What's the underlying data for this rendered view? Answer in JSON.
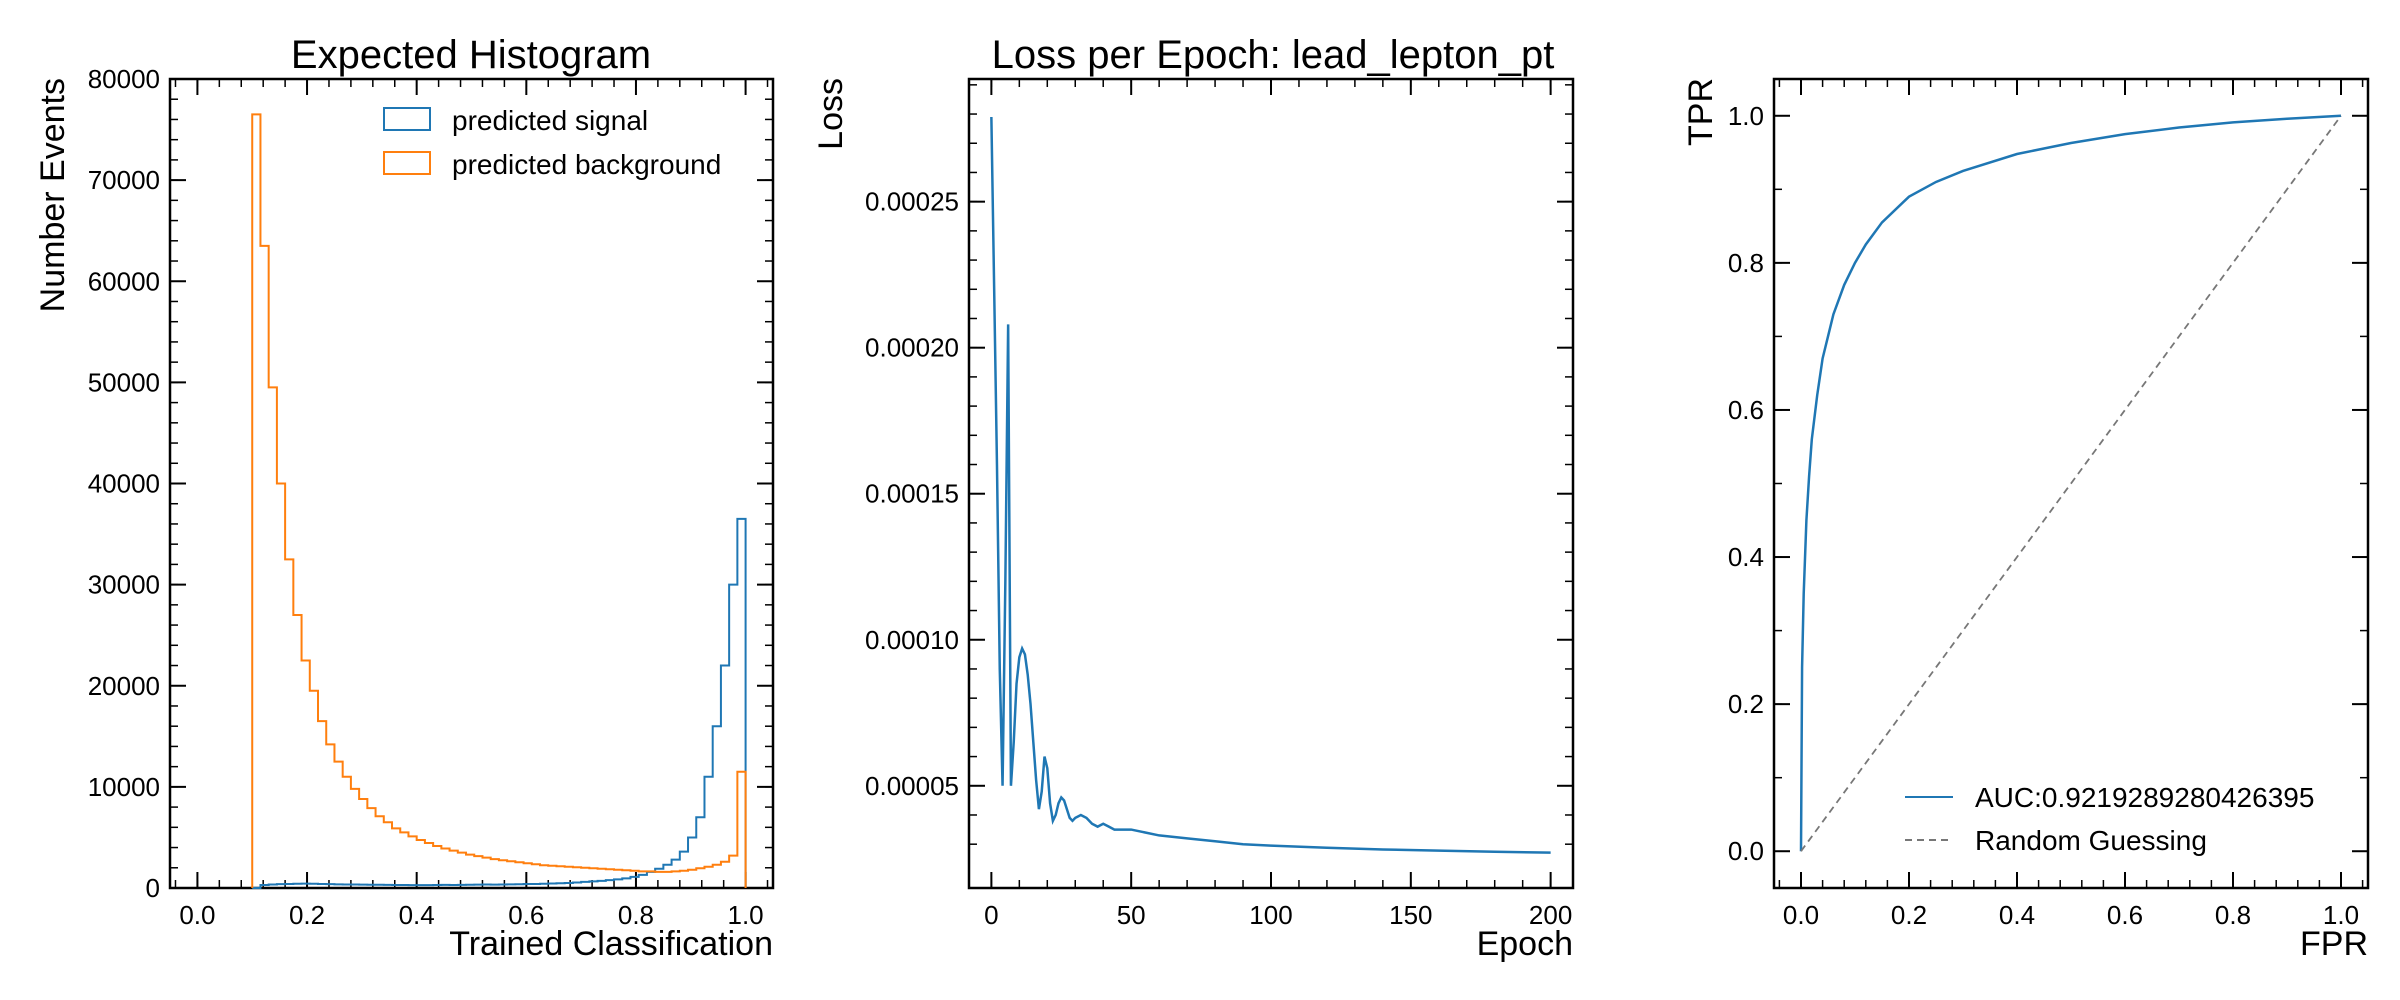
{
  "chart_data": [
    {
      "type": "histogram",
      "title": "Expected Histogram",
      "xlabel": "Trained Classification",
      "ylabel": "Number Events",
      "xlim": [
        -0.05,
        1.05
      ],
      "ylim": [
        0,
        80000
      ],
      "xticks": [
        "0.0",
        "0.2",
        "0.4",
        "0.6",
        "0.8",
        "1.0"
      ],
      "xtick_values": [
        0,
        0.2,
        0.4,
        0.6,
        0.8,
        1.0
      ],
      "yticks": [
        "0",
        "10000",
        "20000",
        "30000",
        "40000",
        "50000",
        "60000",
        "70000",
        "80000"
      ],
      "ytick_values": [
        0,
        10000,
        20000,
        30000,
        40000,
        50000,
        60000,
        70000,
        80000
      ],
      "legend_loc": "top-right",
      "bin_start": 0.1,
      "bin_end": 1.0,
      "series": [
        {
          "name": "predicted signal",
          "color": "#1f77b4",
          "values": [
            0,
            300,
            350,
            380,
            400,
            420,
            430,
            420,
            400,
            380,
            360,
            350,
            340,
            330,
            320,
            320,
            310,
            300,
            300,
            290,
            290,
            290,
            300,
            310,
            300,
            310,
            320,
            330,
            340,
            330,
            350,
            360,
            370,
            390,
            400,
            420,
            450,
            470,
            500,
            550,
            600,
            650,
            700,
            780,
            850,
            950,
            1100,
            1300,
            1600,
            1900,
            2300,
            2800,
            3600,
            5000,
            7000,
            11000,
            16000,
            22000,
            30000,
            36500
          ]
        },
        {
          "name": "predicted background",
          "color": "#ff7f0e",
          "values": [
            76500,
            63500,
            49500,
            40000,
            32500,
            27000,
            22500,
            19500,
            16500,
            14200,
            12500,
            11000,
            9800,
            8800,
            7900,
            7100,
            6500,
            5900,
            5500,
            5100,
            4750,
            4450,
            4150,
            3900,
            3700,
            3500,
            3300,
            3150,
            3000,
            2850,
            2750,
            2650,
            2550,
            2450,
            2350,
            2250,
            2200,
            2150,
            2100,
            2050,
            2000,
            1950,
            1900,
            1850,
            1800,
            1750,
            1700,
            1650,
            1650,
            1600,
            1600,
            1650,
            1700,
            1800,
            1950,
            2100,
            2300,
            2600,
            3200,
            11500
          ]
        }
      ]
    },
    {
      "type": "line",
      "title": "Loss per Epoch: lead_lepton_pt",
      "xlabel": "Epoch",
      "ylabel": "Loss",
      "xlim": [
        -8,
        208
      ],
      "ylim": [
        1.5e-05,
        0.000292
      ],
      "xticks": [
        "0",
        "50",
        "100",
        "150",
        "200"
      ],
      "xtick_values": [
        0,
        50,
        100,
        150,
        200
      ],
      "yticks": [
        "0.00005",
        "0.00010",
        "0.00015",
        "0.00020",
        "0.00025"
      ],
      "ytick_values": [
        5e-05,
        0.0001,
        0.00015,
        0.0002,
        0.00025
      ],
      "series": [
        {
          "name": "",
          "color": "#1f77b4",
          "x": [
            0,
            1,
            2,
            3,
            4,
            5,
            6,
            7,
            8,
            9,
            10,
            11,
            12,
            13,
            14,
            15,
            16,
            17,
            18,
            19,
            20,
            21,
            22,
            23,
            24,
            25,
            26,
            27,
            28,
            29,
            30,
            32,
            34,
            36,
            38,
            40,
            42,
            44,
            46,
            48,
            50,
            55,
            60,
            70,
            80,
            90,
            100,
            120,
            140,
            160,
            180,
            200
          ],
          "y": [
            0.000279,
            0.00022,
            0.00016,
            9e-05,
            5e-05,
            0.00012,
            0.000208,
            5e-05,
            6.5e-05,
            8.5e-05,
            9.4e-05,
            9.7e-05,
            9.5e-05,
            8.8e-05,
            7.8e-05,
            6.5e-05,
            5.2e-05,
            4.2e-05,
            4.8e-05,
            6e-05,
            5.6e-05,
            4.4e-05,
            3.8e-05,
            4e-05,
            4.4e-05,
            4.6e-05,
            4.5e-05,
            4.2e-05,
            3.9e-05,
            3.8e-05,
            3.9e-05,
            4e-05,
            3.9e-05,
            3.7e-05,
            3.6e-05,
            3.7e-05,
            3.6e-05,
            3.5e-05,
            3.5e-05,
            3.5e-05,
            3.5e-05,
            3.4e-05,
            3.3e-05,
            3.2e-05,
            3.1e-05,
            3e-05,
            2.95e-05,
            2.88e-05,
            2.82e-05,
            2.78e-05,
            2.74e-05,
            2.71e-05
          ]
        }
      ]
    },
    {
      "type": "line",
      "title": "",
      "xlabel": "FPR",
      "ylabel": "TPR",
      "xlim": [
        -0.05,
        1.05
      ],
      "ylim": [
        -0.05,
        1.05
      ],
      "xticks": [
        "0.0",
        "0.2",
        "0.4",
        "0.6",
        "0.8",
        "1.0"
      ],
      "xtick_values": [
        0,
        0.2,
        0.4,
        0.6,
        0.8,
        1.0
      ],
      "yticks": [
        "0.0",
        "0.2",
        "0.4",
        "0.6",
        "0.8",
        "1.0"
      ],
      "ytick_values": [
        0,
        0.2,
        0.4,
        0.6,
        0.8,
        1.0
      ],
      "legend_loc": "bottom-right",
      "series": [
        {
          "name": "AUC:0.9219289280426395",
          "color": "#1f77b4",
          "style": "solid",
          "x": [
            0,
            0.002,
            0.005,
            0.01,
            0.015,
            0.02,
            0.03,
            0.04,
            0.05,
            0.06,
            0.08,
            0.1,
            0.12,
            0.15,
            0.2,
            0.25,
            0.3,
            0.4,
            0.5,
            0.6,
            0.7,
            0.8,
            0.9,
            1.0
          ],
          "y": [
            0,
            0.25,
            0.35,
            0.45,
            0.51,
            0.56,
            0.62,
            0.67,
            0.7,
            0.73,
            0.77,
            0.8,
            0.825,
            0.855,
            0.89,
            0.91,
            0.925,
            0.948,
            0.963,
            0.975,
            0.984,
            0.991,
            0.996,
            1.0
          ]
        },
        {
          "name": "Random Guessing",
          "color": "#777777",
          "style": "dashed",
          "x": [
            0,
            1
          ],
          "y": [
            0,
            1
          ]
        }
      ]
    }
  ]
}
